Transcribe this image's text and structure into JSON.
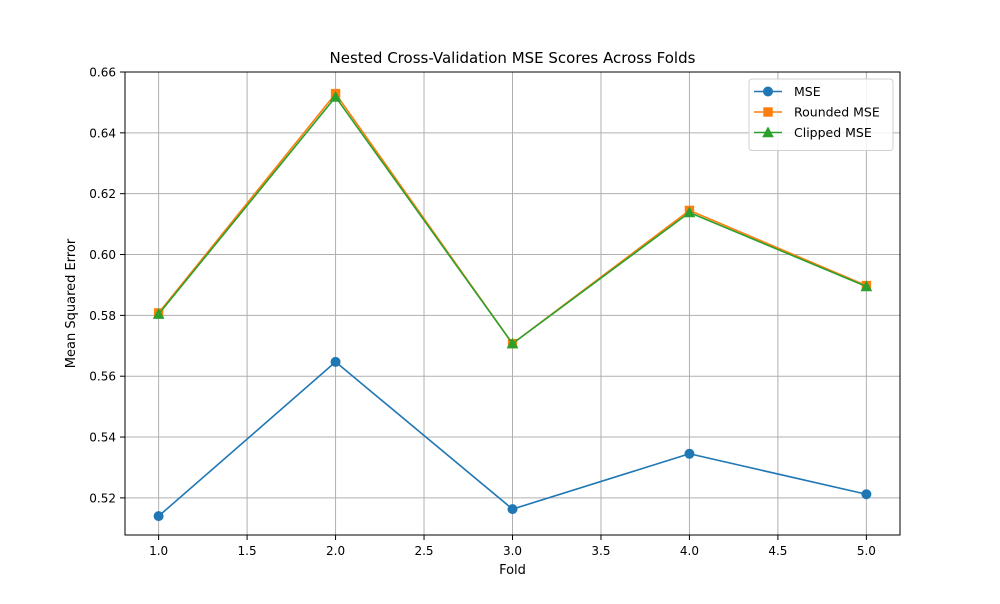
{
  "chart_data": {
    "type": "line",
    "title": "Nested Cross-Validation MSE Scores Across Folds",
    "xlabel": "Fold",
    "ylabel": "Mean Squared Error",
    "xlim": [
      0.81,
      5.19
    ],
    "ylim": [
      0.5078,
      0.66
    ],
    "xticks": [
      1.0,
      1.5,
      2.0,
      2.5,
      3.0,
      3.5,
      4.0,
      4.5,
      5.0
    ],
    "xtick_labels": [
      "1.0",
      "1.5",
      "2.0",
      "2.5",
      "3.0",
      "3.5",
      "4.0",
      "4.5",
      "5.0"
    ],
    "yticks": [
      0.52,
      0.54,
      0.56,
      0.58,
      0.6,
      0.62,
      0.64,
      0.66
    ],
    "ytick_labels": [
      "0.52",
      "0.54",
      "0.56",
      "0.58",
      "0.60",
      "0.62",
      "0.64",
      "0.66"
    ],
    "grid": true,
    "legend_position": "top-right",
    "x": [
      1,
      2,
      3,
      4,
      5
    ],
    "series": [
      {
        "name": "MSE",
        "values": [
          0.514,
          0.5647,
          0.5163,
          0.5345,
          0.5212
        ],
        "color": "#1f77b4",
        "marker": "circle"
      },
      {
        "name": "Rounded MSE",
        "values": [
          0.5808,
          0.6529,
          0.5707,
          0.6145,
          0.5898
        ],
        "color": "#ff7f0e",
        "marker": "square"
      },
      {
        "name": "Clipped MSE",
        "values": [
          0.5804,
          0.6518,
          0.5707,
          0.6138,
          0.5895
        ],
        "color": "#2ca02c",
        "marker": "triangle"
      }
    ]
  }
}
